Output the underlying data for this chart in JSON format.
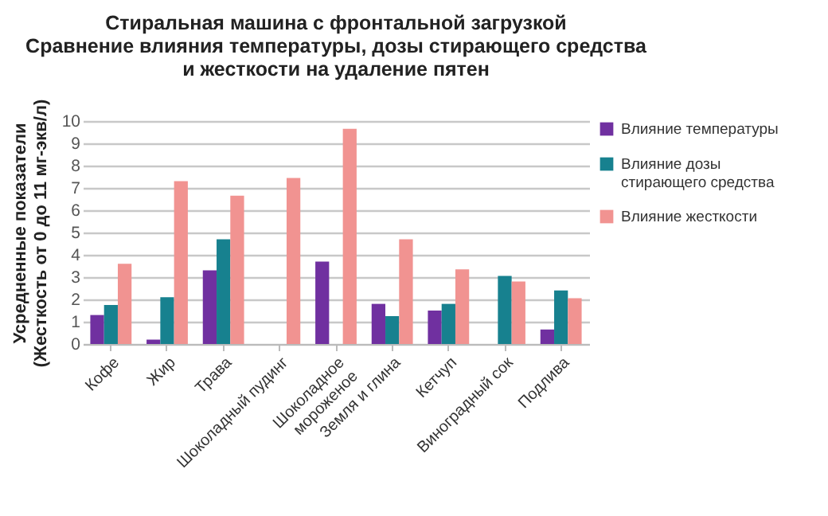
{
  "chart_data": {
    "type": "bar",
    "title": "Стиральная машина с фронтальной загрузкой\nСравнение влияния температуры, дозы стирающего средства\nи жесткости на удаление пятен",
    "ylabel": "Усредненные показатели\n(Жесткость от 0 до 11 мг-экв/л)",
    "categories": [
      "Кофе",
      "Жир",
      "Трава",
      "Шоколадный пудинг",
      "Шоколадное\nмороженое",
      "Земля и глина",
      "Кетчуп",
      "Виноградный сок",
      "Подлива"
    ],
    "series": [
      {
        "name": "Влияние температуры",
        "color": "#7030a0",
        "values": [
          1.3,
          0.2,
          3.3,
          null,
          3.7,
          1.8,
          1.5,
          null,
          0.65
        ]
      },
      {
        "name": "Влияние дозы стирающего средства",
        "color": "#17818f",
        "values": [
          1.75,
          2.1,
          4.7,
          null,
          null,
          1.25,
          1.8,
          3.05,
          2.4
        ]
      },
      {
        "name": "Влияние жесткости",
        "color": "#f19391",
        "values": [
          3.6,
          7.3,
          6.65,
          7.45,
          9.65,
          4.7,
          3.35,
          2.8,
          2.05
        ]
      }
    ],
    "ylim": [
      0,
      10
    ],
    "yticks": [
      0,
      1,
      2,
      3,
      4,
      5,
      6,
      7,
      8,
      9,
      10
    ],
    "grid": true,
    "legend": "right"
  }
}
